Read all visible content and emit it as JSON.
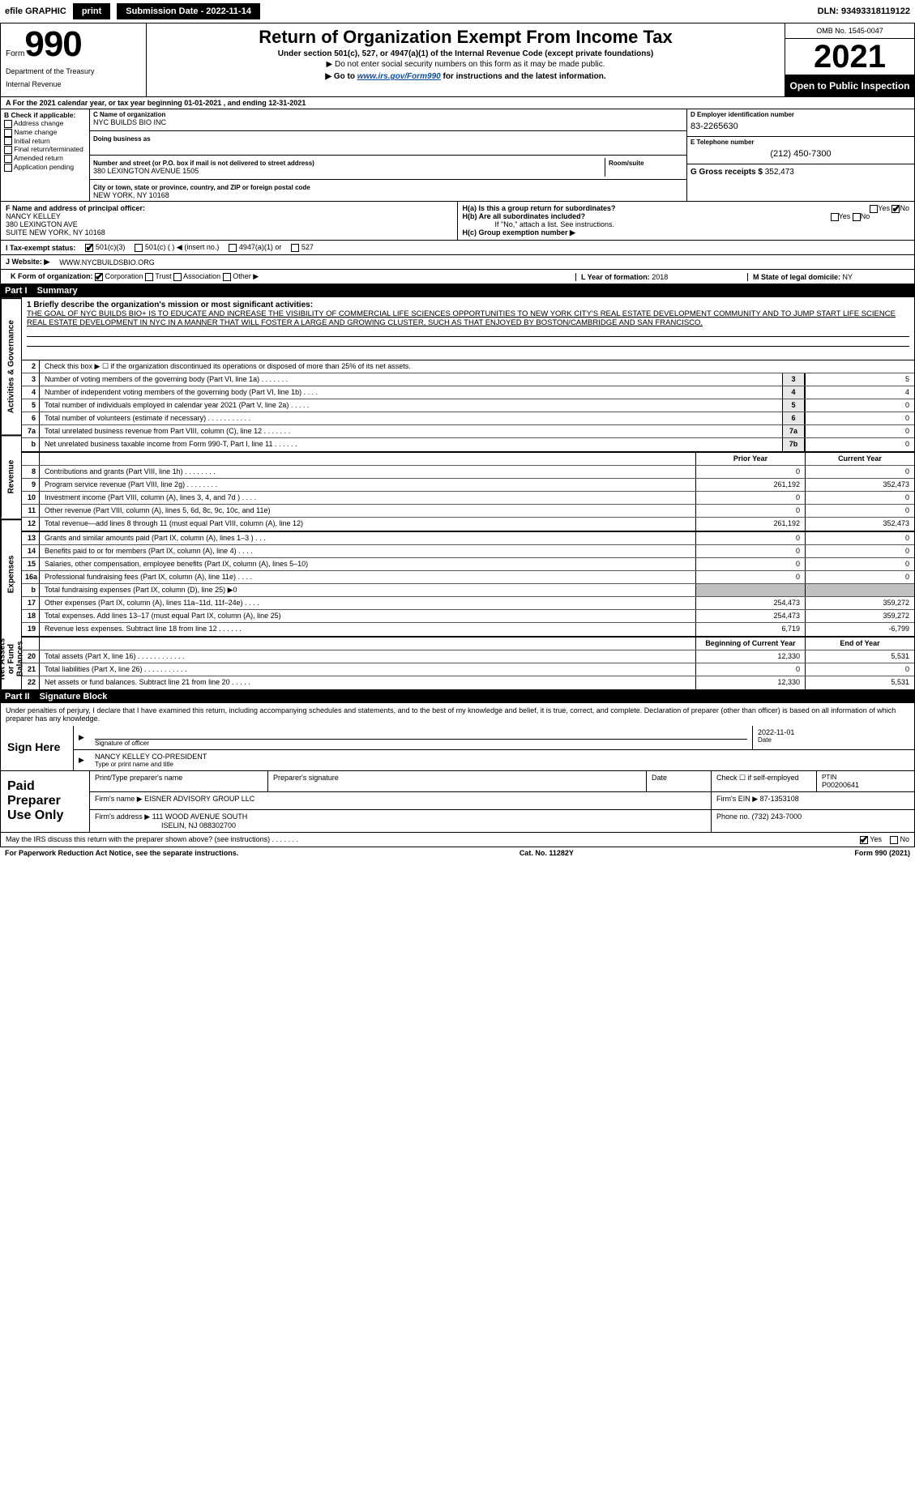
{
  "topbar": {
    "efile_prefix": "efile",
    "efile_suffix": "GRAPHIC",
    "print_btn": "print",
    "submission_label": "Submission Date - 2022-11-14",
    "dln": "DLN: 93493318119122"
  },
  "header": {
    "form_label": "Form",
    "form_number": "990",
    "dept": "Department of the Treasury",
    "irs": "Internal Revenue",
    "title": "Return of Organization Exempt From Income Tax",
    "subtitle": "Under section 501(c), 527, or 4947(a)(1) of the Internal Revenue Code (except private foundations)",
    "subtitle2": "▶ Do not enter social security numbers on this form as it may be made public.",
    "goto_prefix": "▶ Go to ",
    "goto_link": "www.irs.gov/Form990",
    "goto_suffix": " for instructions and the latest information.",
    "omb": "OMB No. 1545-0047",
    "year": "2021",
    "open": "Open to Public Inspection"
  },
  "period": {
    "label_a": "A For the 2021 calendar year, or tax year beginning 01-01-2021    , and ending 12-31-2021"
  },
  "box_b": {
    "label": "B Check if applicable:",
    "items": [
      "Address change",
      "Name change",
      "Initial return",
      "Final return/terminated",
      "Amended return",
      "Application pending"
    ]
  },
  "box_c": {
    "name_label": "C Name of organization",
    "name": "NYC BUILDS BIO INC",
    "dba_label": "Doing business as",
    "addr_label": "Number and street (or P.O. box if mail is not delivered to street address)",
    "room_label": "Room/suite",
    "addr": "380 LEXINGTON AVENUE 1505",
    "city_label": "City or town, state or province, country, and ZIP or foreign postal code",
    "city": "NEW YORK, NY  10168"
  },
  "box_d": {
    "label": "D Employer identification number",
    "ein": "83-2265630"
  },
  "box_e": {
    "label": "E Telephone number",
    "phone": "(212) 450-7300"
  },
  "box_g": {
    "label": "G Gross receipts $",
    "amount": "352,473"
  },
  "box_f": {
    "label": "F  Name and address of principal officer:",
    "name": "NANCY KELLEY",
    "addr1": "380 LEXINGTON AVE",
    "addr2": "SUITE NEW YORK, NY  10168"
  },
  "box_h": {
    "a_label": "H(a)  Is this a group return for subordinates?",
    "a_yes": "Yes",
    "a_no": "No",
    "b_label": "H(b)  Are all subordinates included?",
    "b_yes": "Yes",
    "b_no": "No",
    "b_note": "If \"No,\" attach a list. See instructions.",
    "c_label": "H(c)  Group exemption number ▶"
  },
  "box_i": {
    "label": "I    Tax-exempt status:",
    "o1": "501(c)(3)",
    "o2": "501(c) (  ) ◀ (insert no.)",
    "o3": "4947(a)(1) or",
    "o4": "527"
  },
  "box_j": {
    "label": "J    Website: ▶",
    "url": "WWW.NYCBUILDSBIO.ORG"
  },
  "box_k": {
    "label": "K Form of organization:",
    "o1": "Corporation",
    "o2": "Trust",
    "o3": "Association",
    "o4": "Other ▶"
  },
  "box_l": {
    "label": "L Year of formation:",
    "val": "2018"
  },
  "box_m": {
    "label": "M State of legal domicile:",
    "val": "NY"
  },
  "part1": {
    "num": "Part I",
    "title": "Summary",
    "vlabels": [
      "Activities & Governance",
      "Revenue",
      "Expenses",
      "Net Assets or Fund Balances"
    ],
    "line1_label": "1  Briefly describe the organization's mission or most significant activities:",
    "mission": "THE GOAL OF NYC BUILDS BIO+ IS TO EDUCATE AND INCREASE THE VISIBILITY OF COMMERCIAL LIFE SCIENCES OPPORTUNITIES TO NEW YORK CITY'S REAL ESTATE DEVELOPMENT COMMUNITY AND TO JUMP START LIFE SCIENCE REAL ESTATE DEVELOPMENT IN NYC IN A MANNER THAT WILL FOSTER A LARGE AND GROWING CLUSTER, SUCH AS THAT ENJOYED BY BOSTON/CAMBRIDGE AND SAN FRANCISCO.",
    "line2": "Check this box ▶ ☐  if the organization discontinued its operations or disposed of more than 25% of its net assets.",
    "hdr_prior": "Prior Year",
    "hdr_curr": "Current Year",
    "hdr_boy": "Beginning of Current Year",
    "hdr_eoy": "End of Year",
    "lines_ag": [
      {
        "n": "3",
        "t": "Number of voting members of the governing body (Part VI, line 1a)  .    .    .    .    .    .    .",
        "box": "3",
        "v": "5"
      },
      {
        "n": "4",
        "t": "Number of independent voting members of the governing body (Part VI, line 1b)  .    .    .    .",
        "box": "4",
        "v": "4"
      },
      {
        "n": "5",
        "t": "Total number of individuals employed in calendar year 2021 (Part V, line 2a)  .    .    .    .    .",
        "box": "5",
        "v": "0"
      },
      {
        "n": "6",
        "t": "Total number of volunteers (estimate if necessary)   .    .    .    .    .    .    .    .    .    .    .",
        "box": "6",
        "v": "0"
      },
      {
        "n": "7a",
        "t": "Total unrelated business revenue from Part VIII, column (C), line 12  .    .    .    .    .    .    .",
        "box": "7a",
        "v": "0"
      },
      {
        "n": "b",
        "t": "Net unrelated business taxable income from Form 990-T, Part I, line 11   .    .    .    .    .    .",
        "box": "7b",
        "v": "0"
      }
    ],
    "lines_rev": [
      {
        "n": "8",
        "t": "Contributions and grants (Part VIII, line 1h)    .    .    .    .    .    .    .    .",
        "p": "0",
        "c": "0"
      },
      {
        "n": "9",
        "t": "Program service revenue (Part VIII, line 2g)   .    .    .    .    .    .    .    .",
        "p": "261,192",
        "c": "352,473"
      },
      {
        "n": "10",
        "t": "Investment income (Part VIII, column (A), lines 3, 4, and 7d )   .    .    .    .",
        "p": "0",
        "c": "0"
      },
      {
        "n": "11",
        "t": "Other revenue (Part VIII, column (A), lines 5, 6d, 8c, 9c, 10c, and 11e)",
        "p": "0",
        "c": "0"
      },
      {
        "n": "12",
        "t": "Total revenue—add lines 8 through 11 (must equal Part VIII, column (A), line 12)",
        "p": "261,192",
        "c": "352,473"
      }
    ],
    "lines_exp": [
      {
        "n": "13",
        "t": "Grants and similar amounts paid (Part IX, column (A), lines 1–3 )  .    .    .",
        "p": "0",
        "c": "0"
      },
      {
        "n": "14",
        "t": "Benefits paid to or for members (Part IX, column (A), line 4)  .    .    .    .",
        "p": "0",
        "c": "0"
      },
      {
        "n": "15",
        "t": "Salaries, other compensation, employee benefits (Part IX, column (A), lines 5–10)",
        "p": "0",
        "c": "0"
      },
      {
        "n": "16a",
        "t": "Professional fundraising fees (Part IX, column (A), line 11e)  .    .    .    .",
        "p": "0",
        "c": "0"
      },
      {
        "n": "b",
        "t": "Total fundraising expenses (Part IX, column (D), line 25) ▶0",
        "p": "",
        "c": "",
        "shaded": true
      },
      {
        "n": "17",
        "t": "Other expenses (Part IX, column (A), lines 11a–11d, 11f–24e)  .    .    .    .",
        "p": "254,473",
        "c": "359,272"
      },
      {
        "n": "18",
        "t": "Total expenses. Add lines 13–17 (must equal Part IX, column (A), line 25)",
        "p": "254,473",
        "c": "359,272"
      },
      {
        "n": "19",
        "t": "Revenue less expenses. Subtract line 18 from line 12  .    .    .    .    .    .",
        "p": "6,719",
        "c": "-6,799"
      }
    ],
    "lines_net": [
      {
        "n": "20",
        "t": "Total assets (Part X, line 16)   .    .    .    .    .    .    .    .    .    .    .    .",
        "p": "12,330",
        "c": "5,531"
      },
      {
        "n": "21",
        "t": "Total liabilities (Part X, line 26)   .    .    .    .    .    .    .    .    .    .    .",
        "p": "0",
        "c": "0"
      },
      {
        "n": "22",
        "t": "Net assets or fund balances. Subtract line 21 from line 20   .    .    .    .    .",
        "p": "12,330",
        "c": "5,531"
      }
    ]
  },
  "part2": {
    "num": "Part II",
    "title": "Signature Block",
    "penalty": "Under penalties of perjury, I declare that I have examined this return, including accompanying schedules and statements, and to the best of my knowledge and belief, it is true, correct, and complete. Declaration of preparer (other than officer) is based on all information of which preparer has any knowledge.",
    "sign_here": "Sign Here",
    "sig_officer_label": "Signature of officer",
    "sig_date": "2022-11-01",
    "date_label": "Date",
    "officer_name": "NANCY KELLEY  CO-PRESIDENT",
    "officer_type_label": "Type or print name and title"
  },
  "preparer": {
    "label": "Paid Preparer Use Only",
    "h_name": "Print/Type preparer's name",
    "h_sig": "Preparer's signature",
    "h_date": "Date",
    "h_check": "Check ☐ if self-employed",
    "h_ptin_label": "PTIN",
    "ptin": "P00200641",
    "firm_name_label": "Firm's name    ▶",
    "firm_name": "EISNER ADVISORY GROUP LLC",
    "firm_ein_label": "Firm's EIN ▶",
    "firm_ein": "87-1353108",
    "firm_addr_label": "Firm's address ▶",
    "firm_addr1": "111 WOOD AVENUE SOUTH",
    "firm_addr2": "ISELIN, NJ  088302700",
    "phone_label": "Phone no.",
    "phone": "(732) 243-7000"
  },
  "discuss": {
    "text": "May the IRS discuss this return with the preparer shown above? (see instructions)   .    .    .    .    .    .    .",
    "yes": "Yes",
    "no": "No"
  },
  "footer": {
    "left": "For Paperwork Reduction Act Notice, see the separate instructions.",
    "mid": "Cat. No. 11282Y",
    "right_label": "Form ",
    "right_form": "990",
    "right_year": " (2021)"
  }
}
